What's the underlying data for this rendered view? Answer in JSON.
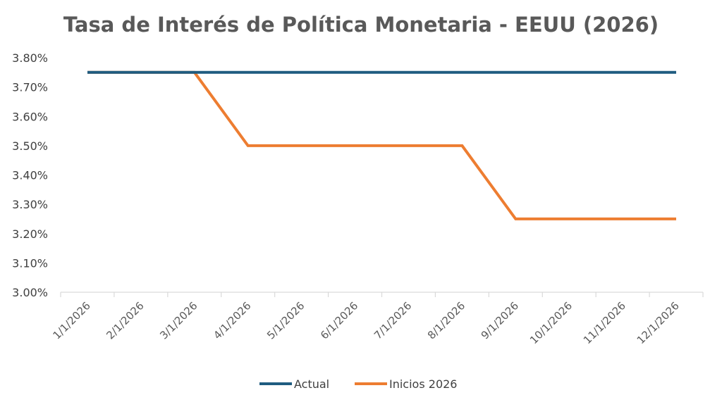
{
  "chart_data": {
    "type": "line",
    "title": "Tasa de Interés de Política Monetaria - EEUU (2026)",
    "categories": [
      "1/1/2026",
      "2/1/2026",
      "3/1/2026",
      "4/1/2026",
      "5/1/2026",
      "6/1/2026",
      "7/1/2026",
      "8/1/2026",
      "9/1/2026",
      "10/1/2026",
      "11/1/2026",
      "12/1/2026"
    ],
    "series": [
      {
        "name": "Actual",
        "color": "#1F5C80",
        "values": [
          3.75,
          3.75,
          3.75,
          3.75,
          3.75,
          3.75,
          3.75,
          3.75,
          3.75,
          3.75,
          3.75,
          3.75
        ]
      },
      {
        "name": "Inicios 2026",
        "color": "#ED7D31",
        "values": [
          3.75,
          3.75,
          3.75,
          3.5,
          3.5,
          3.5,
          3.5,
          3.5,
          3.25,
          3.25,
          3.25,
          3.25
        ]
      }
    ],
    "ylim": [
      3.0,
      3.8
    ],
    "yticks": [
      "3.00%",
      "3.10%",
      "3.20%",
      "3.30%",
      "3.40%",
      "3.50%",
      "3.60%",
      "3.70%",
      "3.80%"
    ],
    "grid": false,
    "legend_position": "bottom"
  }
}
